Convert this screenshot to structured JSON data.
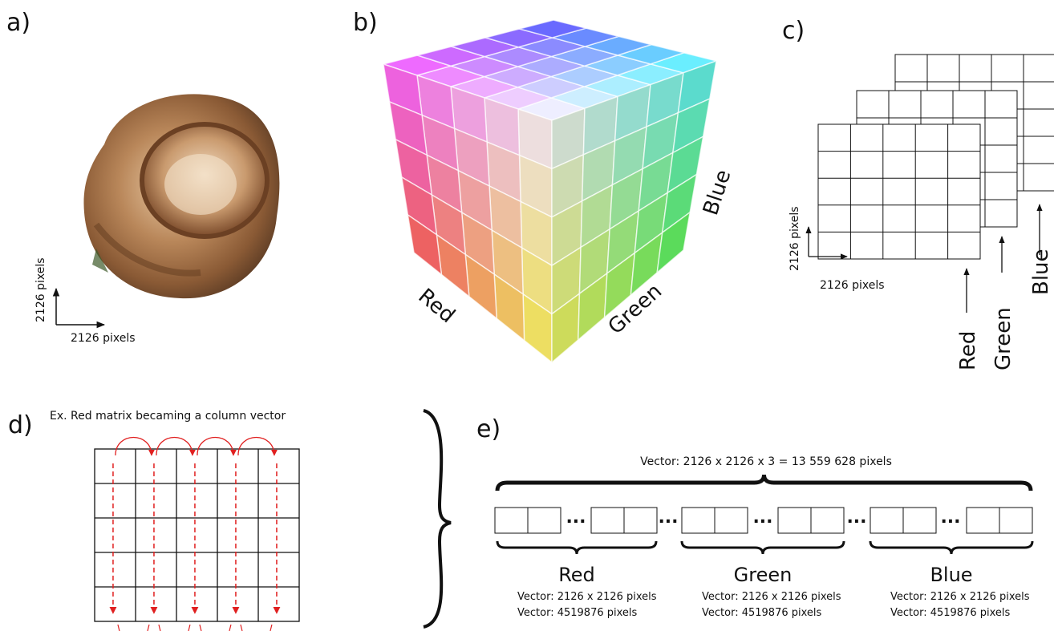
{
  "panels": {
    "a": {
      "label": "a)",
      "y_axis": "2126 pixels",
      "x_axis": "2126 pixels"
    },
    "b": {
      "label": "b)",
      "axes": {
        "red": "Red",
        "green": "Green",
        "blue": "Blue"
      }
    },
    "c": {
      "label": "c)",
      "y_axis": "2126 pixels",
      "x_axis": "2126 pixels",
      "layers": [
        "Red",
        "Green",
        "Blue"
      ]
    },
    "d": {
      "label": "d)",
      "caption": "Ex. Red matrix becaming a column vector"
    },
    "e": {
      "label": "e)",
      "total": "Vector: 2126 x 2126 x 3 = 13 559 628 pixels",
      "ellipsis": "...",
      "channels": [
        {
          "name": "Red",
          "size": "Vector: 2126 x 2126 pixels",
          "count": "Vector: 4519876 pixels"
        },
        {
          "name": "Green",
          "size": "Vector: 2126 x 2126 pixels",
          "count": "Vector: 4519876 pixels"
        },
        {
          "name": "Blue",
          "size": "Vector: 2126 x 2126 pixels",
          "count": "Vector: 4519876 pixels"
        }
      ]
    }
  }
}
